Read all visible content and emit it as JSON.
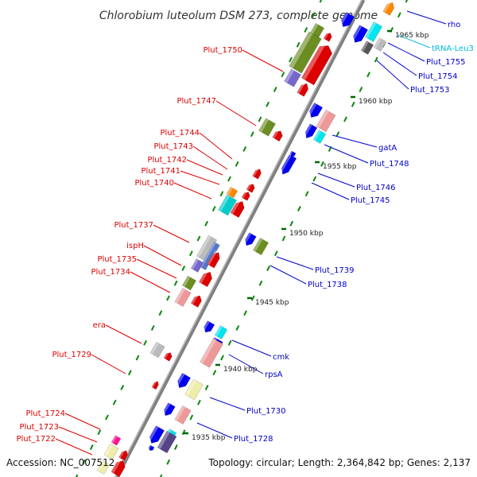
{
  "title": "Chlorobium luteolum DSM 273, complete genome",
  "footer": {
    "accession": "Accession: NC_007512",
    "summary": "Topology: circular; Length: 2,364,842 bp; Genes: 2,137"
  },
  "colors": {
    "backbone": "#888888",
    "left_label": "#dd0000",
    "right_label": "#0000cc",
    "trna_label": "#00bbdd",
    "tick": "#118811"
  },
  "ticks": [
    "1935 kbp",
    "1940 kbp",
    "1945 kbp",
    "1950 kbp",
    "1955 kbp",
    "1960 kbp",
    "1965 kbp"
  ],
  "left_labels": [
    "Plut_1750",
    "Plut_1747",
    "Plut_1744",
    "Plut_1743",
    "Plut_1742",
    "Plut_1741",
    "Plut_1740",
    "Plut_1737",
    "ispH",
    "Plut_1735",
    "Plut_1734",
    "era",
    "Plut_1729",
    "Plut_1724",
    "Plut_1723",
    "Plut_1722"
  ],
  "right_labels": [
    "rho",
    "tRNA-Leu3",
    "Plut_1755",
    "Plut_1754",
    "Plut_1753",
    "gatA",
    "Plut_1748",
    "Plut_1746",
    "Plut_1745",
    "Plut_1739",
    "Plut_1738",
    "cmk",
    "rpsA",
    "Plut_1730",
    "Plut_1728"
  ]
}
